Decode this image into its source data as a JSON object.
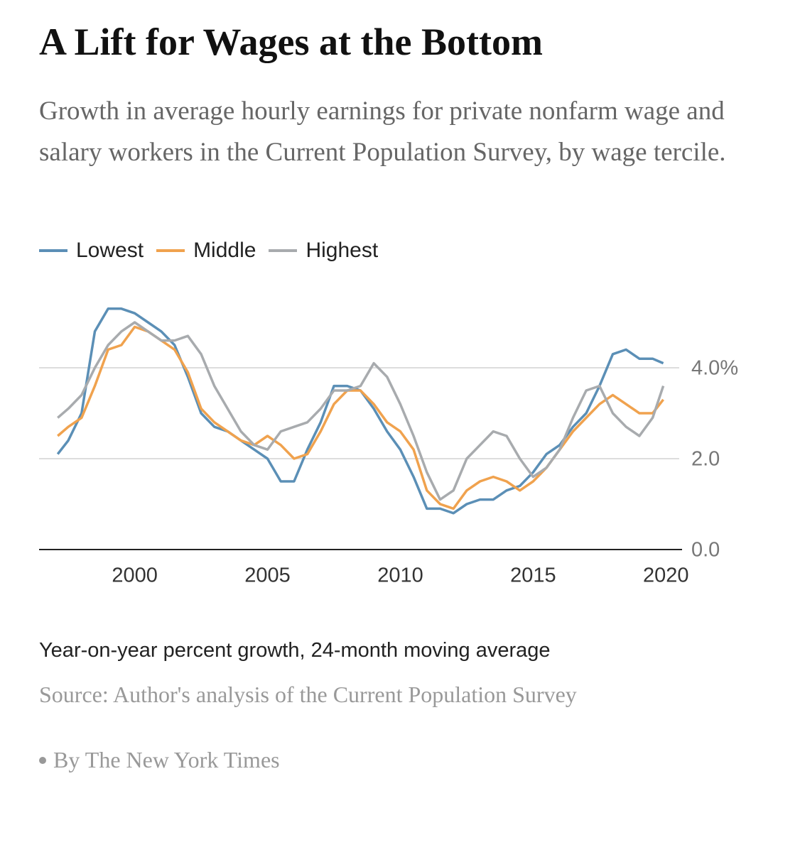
{
  "chart_data": {
    "type": "line",
    "title": "A Lift for Wages at the Bottom",
    "subtitle": "Growth in average hourly earnings for private nonfarm wage and salary workers in the Current Population Survey, by wage tercile.",
    "note": "Year-on-year percent growth, 24-month moving average",
    "source": "Source: Author's analysis of the Current Population Survey",
    "credit": "By The New York Times",
    "x": [
      1997.1,
      1997.5,
      1998.0,
      1998.5,
      1999.0,
      1999.5,
      2000.0,
      2000.5,
      2001.0,
      2001.5,
      2002.0,
      2002.5,
      2003.0,
      2003.5,
      2004.0,
      2004.5,
      2005.0,
      2005.5,
      2006.0,
      2006.5,
      2007.0,
      2007.5,
      2008.0,
      2008.5,
      2009.0,
      2009.5,
      2010.0,
      2010.5,
      2011.0,
      2011.5,
      2012.0,
      2012.5,
      2013.0,
      2013.5,
      2014.0,
      2014.5,
      2015.0,
      2015.5,
      2016.0,
      2016.5,
      2017.0,
      2017.5,
      2018.0,
      2018.5,
      2019.0,
      2019.5,
      2019.9
    ],
    "series": [
      {
        "name": "Lowest",
        "color": "#5b8fb6",
        "values": [
          2.1,
          2.4,
          3.0,
          4.8,
          5.3,
          5.3,
          5.2,
          5.0,
          4.8,
          4.5,
          3.8,
          3.0,
          2.7,
          2.6,
          2.4,
          2.2,
          2.0,
          1.5,
          1.5,
          2.2,
          2.8,
          3.6,
          3.6,
          3.5,
          3.1,
          2.6,
          2.2,
          1.6,
          0.9,
          0.9,
          0.8,
          1.0,
          1.1,
          1.1,
          1.3,
          1.4,
          1.7,
          2.1,
          2.3,
          2.7,
          3.0,
          3.6,
          4.3,
          4.4,
          4.2,
          4.2,
          4.1
        ]
      },
      {
        "name": "Middle",
        "color": "#f0a24e",
        "values": [
          2.5,
          2.7,
          2.9,
          3.6,
          4.4,
          4.5,
          4.9,
          4.8,
          4.6,
          4.4,
          3.9,
          3.1,
          2.8,
          2.6,
          2.4,
          2.3,
          2.5,
          2.3,
          2.0,
          2.1,
          2.6,
          3.2,
          3.5,
          3.5,
          3.2,
          2.8,
          2.6,
          2.2,
          1.3,
          1.0,
          0.9,
          1.3,
          1.5,
          1.6,
          1.5,
          1.3,
          1.5,
          1.8,
          2.2,
          2.6,
          2.9,
          3.2,
          3.4,
          3.2,
          3.0,
          3.0,
          3.3
        ]
      },
      {
        "name": "Highest",
        "color": "#a8abae",
        "values": [
          2.9,
          3.1,
          3.4,
          4.0,
          4.5,
          4.8,
          5.0,
          4.8,
          4.6,
          4.6,
          4.7,
          4.3,
          3.6,
          3.1,
          2.6,
          2.3,
          2.2,
          2.6,
          2.7,
          2.8,
          3.1,
          3.5,
          3.5,
          3.6,
          4.1,
          3.8,
          3.2,
          2.5,
          1.7,
          1.1,
          1.3,
          2.0,
          2.3,
          2.6,
          2.5,
          2.0,
          1.6,
          1.8,
          2.2,
          2.9,
          3.5,
          3.6,
          3.0,
          2.7,
          2.5,
          2.9,
          3.6
        ]
      }
    ],
    "xlim": [
      1996.4,
      2020.5
    ],
    "xticks": [
      2000,
      2005,
      2010,
      2015,
      2020
    ],
    "ylim": [
      0,
      5.5
    ],
    "yticks": [
      {
        "value": 0,
        "label": "0.0"
      },
      {
        "value": 2,
        "label": "2.0"
      },
      {
        "value": 4,
        "label": "4.0%"
      }
    ],
    "grid": true,
    "legend": "top-left"
  }
}
